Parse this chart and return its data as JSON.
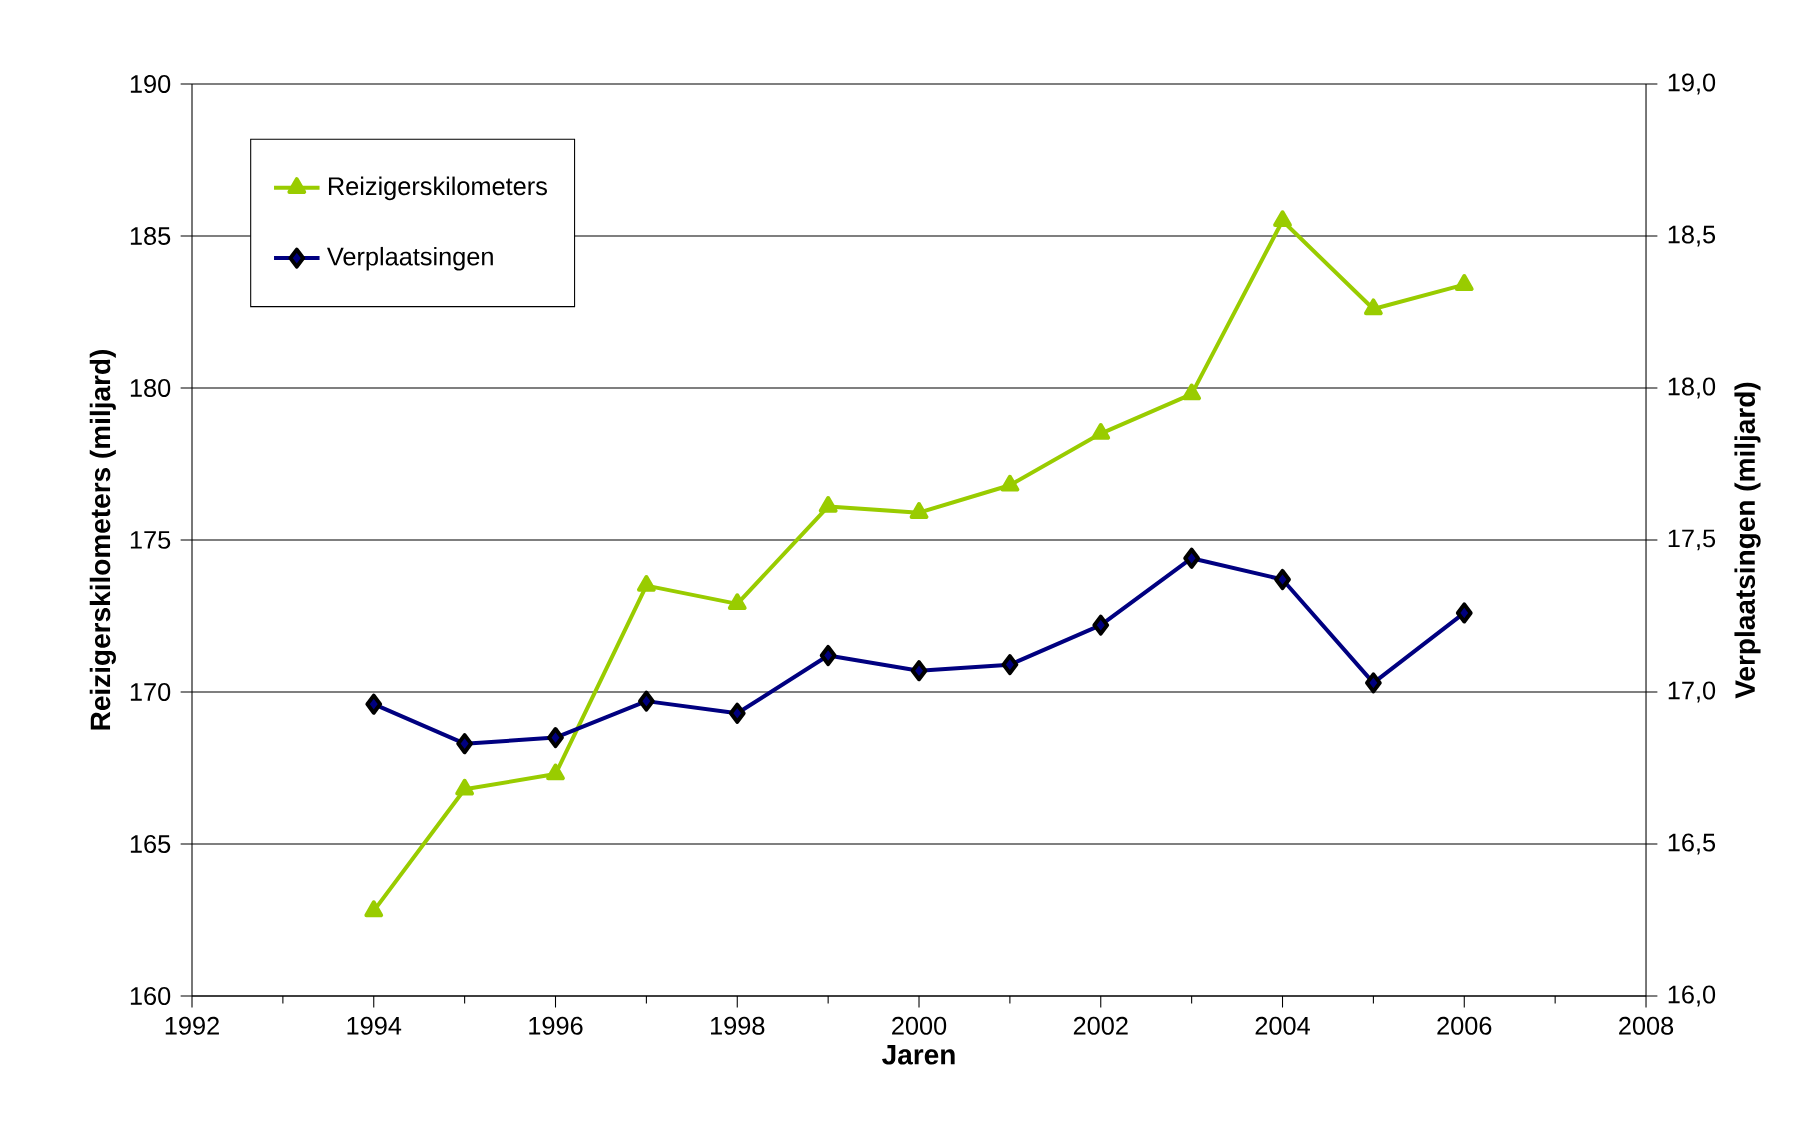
{
  "chart_data": {
    "type": "line",
    "xlabel": "Jaren",
    "ylabel": "Reizigerskilometers (miljard)",
    "y2label": "Verplaatsingen (miljard)",
    "x": [
      1994,
      1995,
      1996,
      1997,
      1998,
      1999,
      2000,
      2001,
      2002,
      2003,
      2004,
      2005,
      2006
    ],
    "series": [
      {
        "name": "Reizigerskilometers",
        "color": "#99cc00",
        "marker": "triangle",
        "values": [
          162.8,
          166.8,
          167.3,
          173.5,
          172.9,
          176.1,
          175.9,
          176.8,
          178.5,
          179.8,
          185.5,
          182.6,
          183.4
        ]
      },
      {
        "name": "Verplaatsingen",
        "color": "#000080",
        "marker": "diamond",
        "axis": "y2",
        "values": [
          16.96,
          16.83,
          16.85,
          16.97,
          16.93,
          17.12,
          17.07,
          17.09,
          17.22,
          17.44,
          17.37,
          17.03,
          17.26
        ]
      }
    ],
    "xlim": [
      1992,
      2008
    ],
    "xticks": [
      1992,
      1994,
      1996,
      1998,
      2000,
      2002,
      2004,
      2006,
      2008
    ],
    "ylim": [
      160,
      190
    ],
    "yticks": [
      160,
      165,
      170,
      175,
      180,
      185,
      190
    ],
    "y2lim": [
      16.0,
      19.0
    ],
    "y2ticks": [
      {
        "value": 16.0,
        "label": "16,0"
      },
      {
        "value": 16.5,
        "label": "16,5"
      },
      {
        "value": 17.0,
        "label": "17,0"
      },
      {
        "value": 17.5,
        "label": "17,5"
      },
      {
        "value": 18.0,
        "label": "18,0"
      },
      {
        "value": 18.5,
        "label": "18,5"
      },
      {
        "value": 19.0,
        "label": "19,0"
      }
    ],
    "grid": "y",
    "legend": "top left",
    "line_style": "solid"
  }
}
